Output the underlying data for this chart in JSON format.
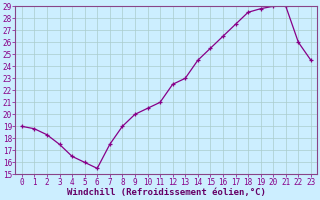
{
  "x": [
    0,
    1,
    2,
    3,
    4,
    5,
    6,
    7,
    8,
    9,
    10,
    11,
    12,
    13,
    14,
    15,
    16,
    17,
    18,
    19,
    20,
    21,
    22,
    23
  ],
  "y": [
    19,
    18.8,
    18.3,
    17.5,
    16.5,
    16.0,
    15.5,
    17.5,
    19.0,
    20.0,
    20.5,
    21.0,
    22.5,
    23.0,
    24.5,
    25.5,
    26.5,
    27.5,
    28.5,
    28.8,
    29.0,
    29.0,
    26.0,
    24.5
  ],
  "ylim": [
    15,
    29
  ],
  "xlim_min": -0.5,
  "xlim_max": 23.5,
  "yticks": [
    15,
    16,
    17,
    18,
    19,
    20,
    21,
    22,
    23,
    24,
    25,
    26,
    27,
    28,
    29
  ],
  "xticks": [
    0,
    1,
    2,
    3,
    4,
    5,
    6,
    7,
    8,
    9,
    10,
    11,
    12,
    13,
    14,
    15,
    16,
    17,
    18,
    19,
    20,
    21,
    22,
    23
  ],
  "xlabel": "Windchill (Refroidissement éolien,°C)",
  "line_color": "#880088",
  "marker": "+",
  "bg_color": "#cceeff",
  "grid_color": "#aacccc",
  "axis_color": "#884488",
  "tick_color": "#880088",
  "label_color": "#660066",
  "tick_fontsize": 5.5,
  "xlabel_fontsize": 6.5
}
